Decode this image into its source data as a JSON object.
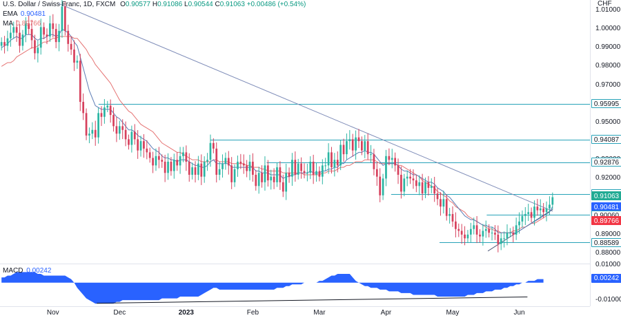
{
  "header": {
    "title": "U.S. Dollar / Swiss Franc, 1D, FXCM",
    "ohlc": [
      {
        "k": "O",
        "v": "0.90577"
      },
      {
        "k": "H",
        "v": "0.91086"
      },
      {
        "k": "L",
        "v": "0.90544"
      },
      {
        "k": "C",
        "v": "0.91063"
      }
    ],
    "change": "+0.00486 (+0.54%)",
    "ema_label": "EMA",
    "ema_value": "0.90481",
    "ma_label": "MA",
    "ma_value": "0.89766",
    "macd_label": "MACD",
    "macd_value": "0.00242",
    "currency": "CHF"
  },
  "colors": {
    "up": "#26a69a",
    "down": "#ef5350",
    "up_body": "#2bb5a3",
    "down_body": "#d6405c",
    "ema": "#5b7bb5",
    "ma": "#e57373",
    "macd": "#2962ff",
    "level": "#26a2b8",
    "trend": "#7e8cb8"
  },
  "chart_data": {
    "type": "candlestick",
    "y_ticks": [
      "1.01000",
      "1.00000",
      "0.99000",
      "0.98000",
      "0.97000",
      "0.96000",
      "0.95000",
      "0.94000",
      "0.93000",
      "0.92000",
      "0.91000",
      "0.90000",
      "0.89000",
      "0.88000"
    ],
    "ylim": [
      0.8745,
      1.0155
    ],
    "x_labels": [
      "Nov",
      "Dec",
      "2023",
      "Feb",
      "Mar",
      "Apr",
      "May",
      "Jun"
    ],
    "price_badges": [
      {
        "text": "0.95995",
        "bg": "#ffffff",
        "fg": "#131722",
        "border": "#26a2b8"
      },
      {
        "text": "0.94087",
        "bg": "#ffffff",
        "fg": "#131722",
        "border": "#26a2b8"
      },
      {
        "text": "0.92876",
        "bg": "#ffffff",
        "fg": "#131722",
        "border": "#26a2b8"
      },
      {
        "text": "0.91185",
        "bg": "#ffffff",
        "fg": "#131722",
        "border": "#26a2b8"
      },
      {
        "text": "0.91063",
        "bg": "#22ab94",
        "fg": "#ffffff",
        "border": "#22ab94"
      },
      {
        "text": "0.90481",
        "bg": "#2962ff",
        "fg": "#ffffff",
        "border": "#2962ff"
      },
      {
        "text": "0.90060",
        "bg": "#ffffff",
        "fg": "#131722",
        "border": "#26a2b8"
      },
      {
        "text": "0.89766",
        "bg": "#f23645",
        "fg": "#ffffff",
        "border": "#f23645"
      },
      {
        "text": "0.88589",
        "bg": "#ffffff",
        "fg": "#131722",
        "border": "#26a2b8"
      }
    ],
    "macd_ticks": [
      "0.01000",
      "-0.01000"
    ],
    "macd_badge": {
      "text": "0.00242",
      "bg": "#2962ff",
      "fg": "#ffffff"
    },
    "closes": [
      0.993,
      0.991,
      0.995,
      0.998,
      1.001,
      0.998,
      0.991,
      0.997,
      1.003,
      1.0,
      0.994,
      0.987,
      0.99,
      1.001,
      0.997,
      0.996,
      1.003,
      1.0,
      0.993,
      0.999,
      1.012,
      0.999,
      0.992,
      0.989,
      0.982,
      0.983,
      0.961,
      0.955,
      0.943,
      0.944,
      0.946,
      0.942,
      0.955,
      0.953,
      0.958,
      0.959,
      0.954,
      0.948,
      0.944,
      0.948,
      0.946,
      0.941,
      0.938,
      0.945,
      0.941,
      0.935,
      0.94,
      0.936,
      0.934,
      0.931,
      0.927,
      0.932,
      0.93,
      0.929,
      0.923,
      0.929,
      0.924,
      0.93,
      0.927,
      0.932,
      0.934,
      0.929,
      0.922,
      0.926,
      0.922,
      0.928,
      0.921,
      0.929,
      0.93,
      0.939,
      0.936,
      0.922,
      0.925,
      0.928,
      0.931,
      0.927,
      0.918,
      0.925,
      0.929,
      0.928,
      0.927,
      0.924,
      0.929,
      0.922,
      0.916,
      0.923,
      0.918,
      0.927,
      0.919,
      0.921,
      0.918,
      0.926,
      0.918,
      0.913,
      0.923,
      0.921,
      0.93,
      0.922,
      0.928,
      0.924,
      0.923,
      0.923,
      0.929,
      0.922,
      0.924,
      0.921,
      0.927,
      0.927,
      0.934,
      0.926,
      0.93,
      0.927,
      0.938,
      0.933,
      0.94,
      0.941,
      0.935,
      0.942,
      0.94,
      0.935,
      0.94,
      0.933,
      0.933,
      0.925,
      0.921,
      0.911,
      0.92,
      0.932,
      0.93,
      0.931,
      0.927,
      0.922,
      0.913,
      0.92,
      0.921,
      0.92,
      0.919,
      0.916,
      0.918,
      0.912,
      0.918,
      0.915,
      0.916,
      0.912,
      0.909,
      0.905,
      0.909,
      0.9,
      0.901,
      0.897,
      0.893,
      0.892,
      0.89,
      0.888,
      0.89,
      0.893,
      0.895,
      0.89,
      0.889,
      0.892,
      0.893,
      0.891,
      0.891,
      0.89,
      0.885,
      0.888,
      0.888,
      0.891,
      0.891,
      0.89,
      0.895,
      0.897,
      0.9,
      0.901,
      0.902,
      0.899,
      0.905,
      0.903,
      0.904,
      0.902,
      0.904,
      0.906,
      0.91
    ],
    "ema": [
      0.99,
      0.991,
      0.992,
      0.994,
      0.995,
      0.996,
      0.995,
      0.995,
      0.997,
      0.997,
      0.997,
      0.995,
      0.994,
      0.995,
      0.995,
      0.996,
      0.997,
      0.997,
      0.996,
      0.997,
      1.0,
      0.999,
      0.998,
      0.996,
      0.993,
      0.991,
      0.985,
      0.979,
      0.973,
      0.967,
      0.963,
      0.959,
      0.958,
      0.957,
      0.957,
      0.957,
      0.957,
      0.955,
      0.953,
      0.952,
      0.95,
      0.948,
      0.946,
      0.946,
      0.945,
      0.943,
      0.942,
      0.941,
      0.94,
      0.938,
      0.936,
      0.935,
      0.934,
      0.932,
      0.931,
      0.931,
      0.93,
      0.93,
      0.929,
      0.93,
      0.93,
      0.93,
      0.929,
      0.928,
      0.927,
      0.927,
      0.926,
      0.926,
      0.927,
      0.929,
      0.93,
      0.928,
      0.928,
      0.928,
      0.928,
      0.928,
      0.926,
      0.926,
      0.926,
      0.926,
      0.926,
      0.926,
      0.926,
      0.926,
      0.924,
      0.924,
      0.923,
      0.923,
      0.923,
      0.922,
      0.922,
      0.922,
      0.922,
      0.92,
      0.921,
      0.921,
      0.922,
      0.922,
      0.923,
      0.923,
      0.923,
      0.923,
      0.924,
      0.923,
      0.923,
      0.923,
      0.924,
      0.924,
      0.925,
      0.925,
      0.926,
      0.926,
      0.928,
      0.928,
      0.93,
      0.931,
      0.932,
      0.933,
      0.934,
      0.934,
      0.935,
      0.934,
      0.934,
      0.933,
      0.931,
      0.929,
      0.927,
      0.928,
      0.928,
      0.928,
      0.928,
      0.927,
      0.925,
      0.924,
      0.924,
      0.923,
      0.922,
      0.922,
      0.921,
      0.92,
      0.919,
      0.918,
      0.918,
      0.917,
      0.915,
      0.914,
      0.913,
      0.911,
      0.91,
      0.908,
      0.906,
      0.904,
      0.902,
      0.9,
      0.899,
      0.898,
      0.898,
      0.897,
      0.896,
      0.895,
      0.895,
      0.894,
      0.894,
      0.893,
      0.891,
      0.891,
      0.891,
      0.891,
      0.891,
      0.891,
      0.891,
      0.892,
      0.893,
      0.894,
      0.895,
      0.896,
      0.897,
      0.898,
      0.899,
      0.9,
      0.901,
      0.902,
      0.905
    ],
    "ma": [
      0.98,
      0.981,
      0.982,
      0.982,
      0.983,
      0.985,
      0.986,
      0.987,
      0.988,
      0.989,
      0.99,
      0.99,
      0.991,
      0.992,
      0.993,
      0.993,
      0.994,
      0.995,
      0.995,
      0.996,
      0.996,
      0.996,
      0.996,
      0.996,
      0.995,
      0.995,
      0.993,
      0.991,
      0.989,
      0.986,
      0.984,
      0.981,
      0.979,
      0.977,
      0.975,
      0.973,
      0.971,
      0.968,
      0.965,
      0.962,
      0.96,
      0.958,
      0.956,
      0.955,
      0.953,
      0.951,
      0.949,
      0.948,
      0.947,
      0.946,
      0.945,
      0.943,
      0.941,
      0.939,
      0.938,
      0.937,
      0.936,
      0.935,
      0.934,
      0.934,
      0.933,
      0.932,
      0.931,
      0.93,
      0.93,
      0.93,
      0.929,
      0.929,
      0.929,
      0.929,
      0.93,
      0.93,
      0.929,
      0.929,
      0.929,
      0.929,
      0.928,
      0.928,
      0.928,
      0.928,
      0.928,
      0.927,
      0.927,
      0.926,
      0.926,
      0.926,
      0.925,
      0.925,
      0.924,
      0.924,
      0.924,
      0.924,
      0.924,
      0.923,
      0.923,
      0.923,
      0.923,
      0.923,
      0.923,
      0.923,
      0.922,
      0.922,
      0.922,
      0.922,
      0.922,
      0.922,
      0.923,
      0.923,
      0.924,
      0.924,
      0.924,
      0.925,
      0.926,
      0.926,
      0.927,
      0.927,
      0.928,
      0.929,
      0.929,
      0.929,
      0.93,
      0.93,
      0.93,
      0.93,
      0.929,
      0.928,
      0.928,
      0.928,
      0.928,
      0.928,
      0.928,
      0.927,
      0.927,
      0.926,
      0.925,
      0.924,
      0.923,
      0.922,
      0.921,
      0.919,
      0.918,
      0.917,
      0.916,
      0.915,
      0.913,
      0.912,
      0.911,
      0.91,
      0.908,
      0.907,
      0.905,
      0.904,
      0.903,
      0.902,
      0.9,
      0.899,
      0.898,
      0.897,
      0.896,
      0.895,
      0.894,
      0.893,
      0.893,
      0.892,
      0.892,
      0.891,
      0.891,
      0.891,
      0.891,
      0.892,
      0.892,
      0.893,
      0.894,
      0.894,
      0.895,
      0.896,
      0.896,
      0.897,
      0.898,
      0.899,
      0.9
    ],
    "horizontal_levels": [
      {
        "price": 0.95995,
        "x_start_frac": 0.167
      },
      {
        "price": 0.94087,
        "x_start_frac": 0.357
      },
      {
        "price": 0.92876,
        "x_start_frac": 0.452
      },
      {
        "price": 0.91185,
        "x_start_frac": 0.663
      },
      {
        "price": 0.9006,
        "x_start_frac": 0.825
      },
      {
        "price": 0.88589,
        "x_start_frac": 0.745
      }
    ],
    "trendline": {
      "from_price": 1.0135,
      "to_price": 0.9025,
      "from_frac": 0.1,
      "to_frac": 0.937
    },
    "support_line": {
      "from_price": 0.8812,
      "to_price": 0.9035,
      "from_frac": 0.827,
      "to_frac": 0.937
    },
    "macd_area": [
      0.003,
      0.003,
      0.004,
      0.004,
      0.005,
      0.006,
      0.006,
      0.006,
      0.006,
      0.006,
      0.006,
      0.006,
      0.005,
      0.005,
      0.004,
      0.004,
      0.004,
      0.004,
      0.004,
      0.004,
      0.004,
      0.004,
      0.003,
      0.002,
      0.0,
      -0.003,
      -0.005,
      -0.007,
      -0.009,
      -0.01,
      -0.011,
      -0.012,
      -0.012,
      -0.012,
      -0.012,
      -0.012,
      -0.012,
      -0.012,
      -0.011,
      -0.011,
      -0.01,
      -0.01,
      -0.01,
      -0.01,
      -0.01,
      -0.01,
      -0.01,
      -0.01,
      -0.01,
      -0.01,
      -0.01,
      -0.01,
      -0.01,
      -0.009,
      -0.009,
      -0.009,
      -0.009,
      -0.009,
      -0.009,
      -0.008,
      -0.008,
      -0.008,
      -0.008,
      -0.008,
      -0.008,
      -0.008,
      -0.007,
      -0.006,
      -0.005,
      -0.004,
      -0.003,
      -0.003,
      -0.004,
      -0.004,
      -0.004,
      -0.004,
      -0.004,
      -0.004,
      -0.004,
      -0.004,
      -0.004,
      -0.004,
      -0.004,
      -0.004,
      -0.004,
      -0.004,
      -0.004,
      -0.004,
      -0.004,
      -0.004,
      -0.004,
      -0.003,
      -0.003,
      -0.003,
      -0.002,
      -0.002,
      -0.001,
      -0.001,
      -0.001,
      -0.001,
      0.0,
      0.0,
      0.0,
      0.0,
      0.0,
      0.001,
      0.001,
      0.002,
      0.003,
      0.004,
      0.004,
      0.005,
      0.005,
      0.005,
      0.005,
      0.005,
      0.003,
      0.001,
      0.0,
      -0.001,
      -0.002,
      -0.002,
      -0.003,
      -0.003,
      -0.003,
      -0.004,
      -0.004,
      -0.004,
      -0.005,
      -0.005,
      -0.005,
      -0.005,
      -0.006,
      -0.006,
      -0.006,
      -0.006,
      -0.007,
      -0.007,
      -0.007,
      -0.007,
      -0.007,
      -0.007,
      -0.007,
      -0.007,
      -0.008,
      -0.008,
      -0.008,
      -0.008,
      -0.008,
      -0.008,
      -0.008,
      -0.008,
      -0.008,
      -0.008,
      -0.007,
      -0.007,
      -0.007,
      -0.006,
      -0.006,
      -0.006,
      -0.005,
      -0.005,
      -0.005,
      -0.004,
      -0.004,
      -0.004,
      -0.003,
      -0.003,
      -0.002,
      -0.002,
      -0.001,
      -0.001,
      0.0,
      0.0,
      0.001,
      0.001,
      0.001,
      0.002,
      0.002,
      0.002
    ],
    "macd_divergence_line": {
      "from_frac": 0.164,
      "to_frac": 0.894,
      "from_val": -0.0118,
      "to_val": -0.0082
    }
  }
}
